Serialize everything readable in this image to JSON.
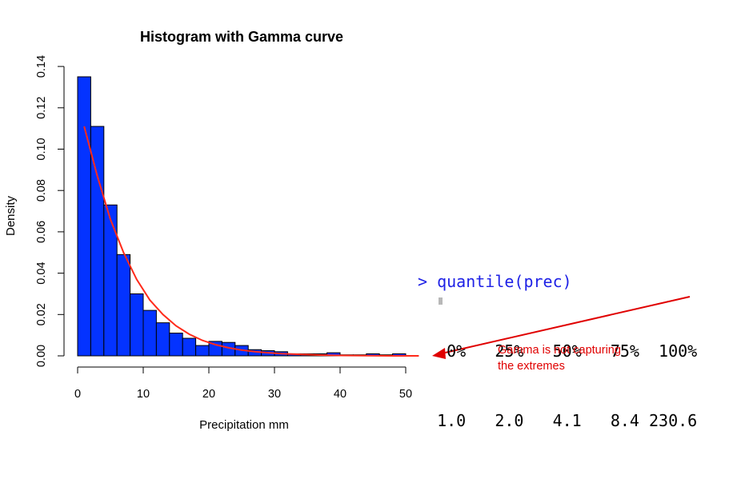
{
  "chart_data": {
    "type": "bar",
    "title": "Histogram with Gamma curve",
    "xlabel": "Precipitation mm",
    "ylabel": "Density",
    "xlim": [
      0,
      50
    ],
    "ylim": [
      0,
      0.14
    ],
    "xticks": [
      "0",
      "10",
      "20",
      "30",
      "40",
      "50"
    ],
    "yticks": [
      "0.00",
      "0.02",
      "0.04",
      "0.06",
      "0.08",
      "0.10",
      "0.12",
      "0.14"
    ],
    "bin_width": 2,
    "bin_starts": [
      0,
      2,
      4,
      6,
      8,
      10,
      12,
      14,
      16,
      18,
      20,
      22,
      24,
      26,
      28,
      30,
      32,
      34,
      36,
      38,
      40,
      42,
      44,
      46,
      48
    ],
    "values": [
      0.135,
      0.111,
      0.073,
      0.049,
      0.03,
      0.022,
      0.016,
      0.011,
      0.0085,
      0.005,
      0.007,
      0.0065,
      0.005,
      0.003,
      0.0025,
      0.002,
      0.001,
      0.001,
      0.001,
      0.0015,
      0.0005,
      0.0005,
      0.001,
      0.0005,
      0.001
    ],
    "bar_color": "#0433ff",
    "series": [
      {
        "type": "line",
        "color": "#ff2a1a",
        "x": [
          1,
          3,
          5,
          7,
          9,
          11,
          13,
          15,
          17,
          19,
          21,
          23,
          25,
          27,
          29,
          31,
          33,
          35,
          37,
          40,
          44,
          48,
          52
        ],
        "y": [
          0.111,
          0.087,
          0.066,
          0.05,
          0.037,
          0.027,
          0.02,
          0.0145,
          0.0105,
          0.0075,
          0.0054,
          0.0039,
          0.0028,
          0.002,
          0.0015,
          0.0011,
          0.0008,
          0.0006,
          0.0004,
          0.0002,
          0.0001,
          0.0,
          0.0
        ]
      }
    ],
    "grid": false
  },
  "console": {
    "command": "> quantile(prec)",
    "header": "   0%   25%   50%   75%  100%",
    "values": "  1.0   2.0   4.1   8.4 230.6"
  },
  "annotation": {
    "line1": "Gamma is not capturing",
    "line2": "the extremes",
    "color": "#e00000"
  }
}
